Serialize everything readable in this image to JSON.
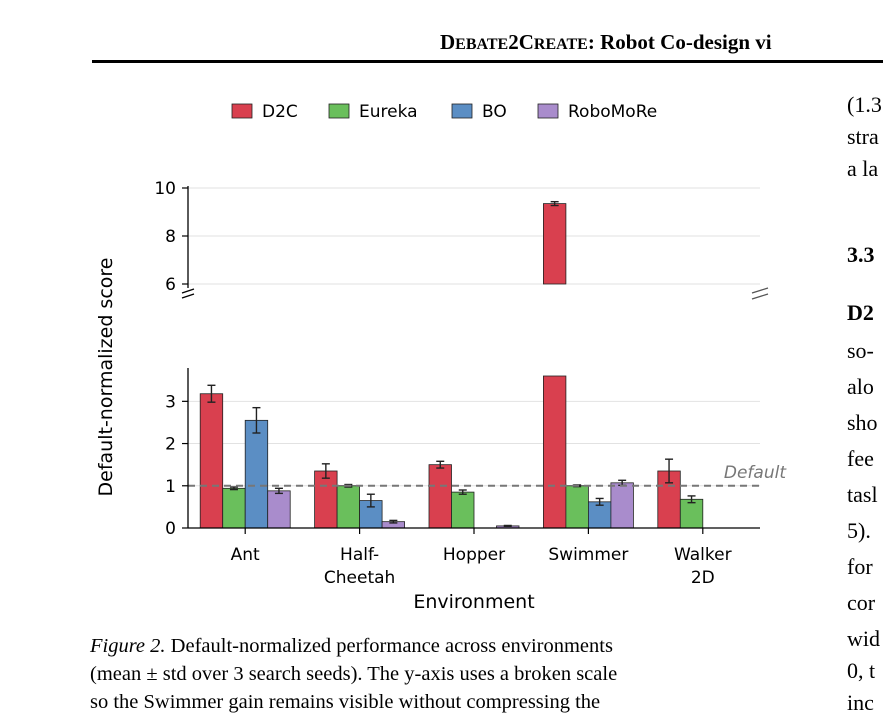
{
  "running_head": {
    "first_big": "D",
    "first_small": "EBATE",
    "middle": "2C",
    "second_small": "REATE",
    "rest": ": Robot Co-design vi"
  },
  "caption": {
    "label": "Figure 2.",
    "line1": "Default-normalized performance across environments",
    "line2": "(mean ± std over 3 search seeds). The y-axis uses a broken scale",
    "line3": "so the Swimmer gain remains visible without compressing the"
  },
  "right_column": {
    "lines": [
      "(1.3",
      "stra",
      "a la",
      "3.3",
      "D2",
      "so-",
      "alo",
      "sho",
      "fee",
      "tasl",
      "5).",
      "for",
      "cor",
      "wid",
      "0, t",
      "inc"
    ]
  },
  "chart_data": {
    "type": "bar",
    "xlabel": "Environment",
    "ylabel": "Default-normalized score",
    "categories": [
      "Ant",
      "Half-\nCheetah",
      "Hopper",
      "Swimmer",
      "Walker\n2D"
    ],
    "series": [
      {
        "name": "D2C",
        "color": "#d9404f",
        "values": [
          3.18,
          1.35,
          1.5,
          9.35,
          1.35
        ],
        "errors": [
          0.2,
          0.17,
          0.08,
          0.08,
          0.28
        ]
      },
      {
        "name": "Eureka",
        "color": "#6abf5c",
        "values": [
          0.94,
          1.0,
          0.85,
          1.0,
          0.68
        ],
        "errors": [
          0.03,
          0.03,
          0.05,
          0.02,
          0.08
        ]
      },
      {
        "name": "BO",
        "color": "#5b8ec4",
        "values": [
          2.55,
          0.65,
          0.0,
          0.62,
          0.0
        ],
        "errors": [
          0.3,
          0.15,
          0.0,
          0.08,
          0.0
        ]
      },
      {
        "name": "RoboMoRe",
        "color": "#a98ccc",
        "values": [
          0.88,
          0.15,
          0.05,
          1.07,
          0.0
        ],
        "errors": [
          0.06,
          0.03,
          0.01,
          0.06,
          0.0
        ]
      }
    ],
    "lower_axis": {
      "ylim": [
        0,
        3.6
      ],
      "ticks": [
        0,
        1,
        2,
        3
      ]
    },
    "upper_axis": {
      "ylim": [
        6,
        10
      ],
      "ticks": [
        6,
        8,
        10
      ]
    },
    "broken_axis": true,
    "reference_line": {
      "value": 1.0,
      "label": "Default",
      "style": "dashed"
    },
    "legend_placement": "top-center",
    "grid": "horizontal"
  }
}
